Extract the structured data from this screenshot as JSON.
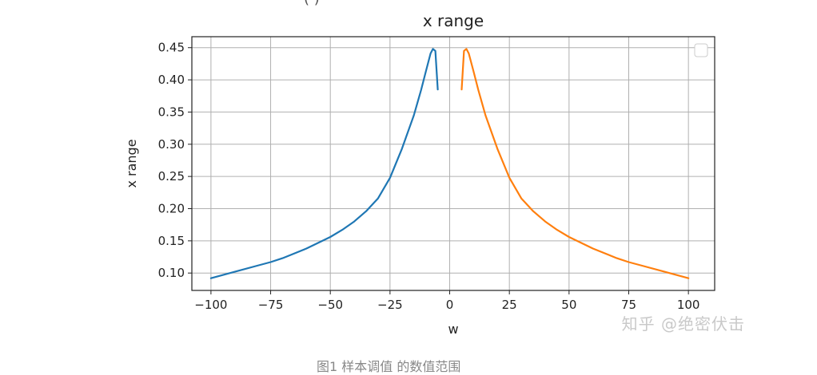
{
  "chart_data": {
    "type": "line",
    "title": "x range",
    "xlabel": "w",
    "ylabel": "x range",
    "xlim": [
      -108,
      111
    ],
    "ylim": [
      0.073,
      0.467
    ],
    "xticks": [
      -100,
      -75,
      -50,
      -25,
      0,
      25,
      50,
      75,
      100
    ],
    "yticks": [
      0.1,
      0.15,
      0.2,
      0.25,
      0.3,
      0.35,
      0.4,
      0.45
    ],
    "xtick_labels": [
      "−100",
      "−75",
      "−50",
      "−25",
      "0",
      "25",
      "50",
      "75",
      "100"
    ],
    "ytick_labels": [
      "0.10",
      "0.15",
      "0.20",
      "0.25",
      "0.30",
      "0.35",
      "0.40",
      "0.45"
    ],
    "grid": true,
    "legend": "top-right (empty)",
    "series": [
      {
        "color": "#1f77b4",
        "x": [
          -100,
          -90,
          -80,
          -75,
          -70,
          -60,
          -50,
          -45,
          -40,
          -35,
          -30,
          -25,
          -20,
          -15,
          -12,
          -10,
          -8,
          -7,
          -6,
          -5
        ],
        "y": [
          0.092,
          0.102,
          0.112,
          0.117,
          0.123,
          0.138,
          0.156,
          0.167,
          0.18,
          0.196,
          0.216,
          0.248,
          0.293,
          0.345,
          0.384,
          0.413,
          0.441,
          0.448,
          0.445,
          0.385
        ]
      },
      {
        "color": "#ff7f0e",
        "x": [
          5,
          6,
          7,
          8,
          10,
          12,
          15,
          20,
          25,
          30,
          35,
          40,
          45,
          50,
          60,
          70,
          75,
          80,
          90,
          100
        ],
        "y": [
          0.385,
          0.445,
          0.448,
          0.441,
          0.413,
          0.384,
          0.345,
          0.293,
          0.248,
          0.216,
          0.196,
          0.18,
          0.167,
          0.156,
          0.138,
          0.123,
          0.117,
          0.112,
          0.102,
          0.092
        ]
      }
    ]
  },
  "watermark": "知乎 @绝密伏击",
  "caption": "图1  样本调值  的数值范围",
  "top_text": "(                                                     )"
}
